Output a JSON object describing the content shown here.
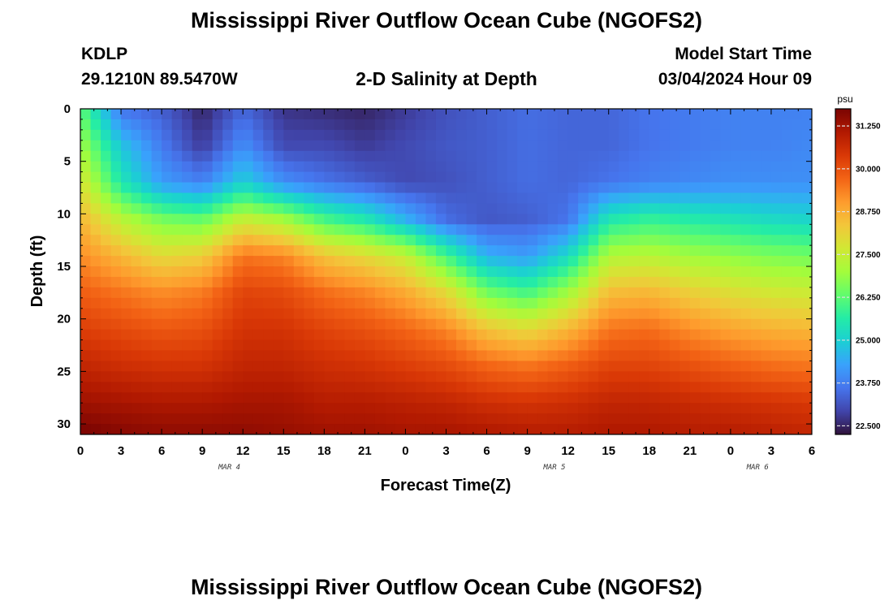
{
  "page": {
    "title": "Mississippi River Outflow Ocean Cube (NGOFS2)",
    "station_id": "KDLP",
    "station_coords": "29.1210N  89.5470W",
    "subtitle": "2-D Salinity at Depth",
    "model_start_label": "Model Start Time",
    "model_start_value": "03/04/2024 Hour 09",
    "bottom_title": "Mississippi River Outflow Ocean Cube (NGOFS2)"
  },
  "chart_data": {
    "type": "heatmap",
    "xlabel": "Forecast Time(Z)",
    "ylabel": "Depth (ft)",
    "x_hours": [
      0,
      3,
      6,
      9,
      12,
      15,
      18,
      21,
      24,
      27,
      30,
      33,
      36,
      39,
      42,
      45,
      48,
      51,
      54
    ],
    "x_tick_labels": [
      "0",
      "3",
      "6",
      "9",
      "12",
      "15",
      "18",
      "21",
      "0",
      "3",
      "6",
      "9",
      "12",
      "15",
      "18",
      "21",
      "0",
      "3",
      "6"
    ],
    "x_date_labels": [
      {
        "hour": 11,
        "label": "MAR 4"
      },
      {
        "hour": 35,
        "label": "MAR 5"
      },
      {
        "hour": 50,
        "label": "MAR 6"
      }
    ],
    "xlim": [
      0,
      54
    ],
    "y_depths_ft": [
      0,
      5,
      10,
      15,
      20,
      25,
      30
    ],
    "y_tick_labels": [
      "0",
      "5",
      "10",
      "15",
      "20",
      "25",
      "30"
    ],
    "ylim": [
      0,
      31
    ],
    "salinity_psu": [
      [
        26.3,
        23.6,
        23.3,
        22.5,
        23.4,
        22.7,
        22.6,
        22.5,
        22.8,
        23.1,
        23.3,
        23.5,
        23.4,
        23.4,
        23.6,
        23.7,
        23.8,
        23.8,
        23.8
      ],
      [
        27.0,
        24.8,
        23.7,
        22.8,
        24.0,
        23.0,
        23.0,
        22.8,
        23.0,
        23.2,
        23.3,
        23.5,
        23.4,
        23.4,
        23.6,
        23.7,
        23.8,
        23.8,
        23.9
      ],
      [
        27.8,
        25.5,
        24.2,
        23.8,
        25.0,
        24.0,
        23.6,
        23.3,
        23.0,
        23.1,
        23.3,
        23.5,
        23.4,
        23.6,
        23.8,
        23.9,
        24.0,
        24.0,
        24.0
      ],
      [
        28.6,
        27.3,
        26.5,
        26.3,
        27.5,
        27.0,
        26.0,
        25.5,
        24.5,
        23.5,
        23.2,
        23.3,
        23.6,
        25.5,
        25.8,
        25.6,
        25.4,
        25.2,
        25.1
      ],
      [
        29.2,
        28.6,
        28.0,
        28.2,
        29.5,
        29.3,
        28.4,
        28.0,
        27.5,
        26.0,
        24.5,
        24.2,
        25.2,
        27.2,
        27.3,
        27.0,
        26.8,
        26.6,
        26.5
      ],
      [
        29.8,
        29.5,
        29.2,
        29.4,
        30.2,
        30.1,
        29.6,
        29.3,
        28.8,
        28.0,
        26.5,
        26.0,
        27.0,
        28.5,
        28.6,
        28.2,
        27.9,
        27.7,
        27.6
      ],
      [
        30.3,
        30.1,
        29.9,
        30.0,
        30.5,
        30.5,
        30.2,
        30.0,
        29.7,
        29.3,
        28.4,
        28.0,
        28.6,
        29.5,
        29.6,
        29.2,
        28.9,
        28.7,
        28.6
      ],
      [
        30.8,
        30.6,
        30.5,
        30.5,
        30.8,
        30.8,
        30.6,
        30.5,
        30.3,
        30.1,
        29.7,
        29.5,
        29.8,
        30.2,
        30.2,
        30.0,
        29.8,
        29.6,
        29.5
      ],
      [
        31.3,
        31.2,
        31.1,
        31.1,
        31.2,
        31.2,
        31.0,
        31.0,
        30.9,
        30.8,
        30.6,
        30.5,
        30.6,
        30.8,
        30.8,
        30.7,
        30.6,
        30.5,
        30.4
      ],
      [
        31.8,
        31.6,
        31.5,
        31.5,
        31.5,
        31.4,
        31.3,
        31.3,
        31.2,
        31.2,
        31.1,
        31.0,
        31.0,
        31.1,
        31.1,
        31.0,
        31.0,
        30.9,
        30.8
      ]
    ],
    "salinity_depths_ft": [
      0,
      3.5,
      7,
      10.5,
      14,
      17.5,
      21,
      24.5,
      28,
      31
    ],
    "colorbar": {
      "unit": "psu",
      "range": [
        22.25,
        31.75
      ],
      "tick_values": [
        22.5,
        23.75,
        25.0,
        26.25,
        27.5,
        28.75,
        30.0,
        31.25
      ],
      "tick_labels": [
        "22.500",
        "23.750",
        "25.000",
        "26.250",
        "27.500",
        "28.750",
        "30.000",
        "31.250"
      ],
      "colormap": [
        "#30123b",
        "#4145ab",
        "#4675ed",
        "#39a2fc",
        "#1bcfd4",
        "#24eca6",
        "#61fc6c",
        "#a4fc3b",
        "#d1e834",
        "#f3c63a",
        "#fe9b2d",
        "#f36315",
        "#d93806",
        "#b11901",
        "#7a0402"
      ]
    }
  }
}
